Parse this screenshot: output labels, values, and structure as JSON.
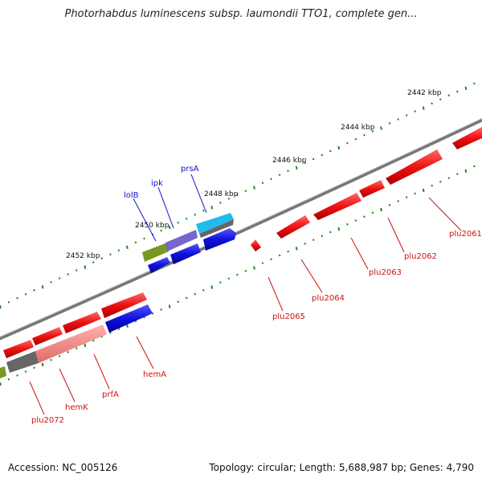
{
  "title": "Photorhabdus luminescens subsp. laumondii TTO1, complete gen...",
  "footer": {
    "accession": "Accession: NC_005126",
    "stats": "Topology: circular; Length: 5,688,987 bp; Genes: 4,790"
  },
  "kbp_ticks": [
    "2442 kbp",
    "2444 kbp",
    "2446 kbp",
    "2448 kbp",
    "2450 kbp",
    "2452 kbp"
  ],
  "colors": {
    "backbone": "#888888",
    "forward_tick": "#228822",
    "red_gene": "#ee1111",
    "blue_gene": "#1111dd",
    "label_blue": "#1111cc",
    "label_red": "#cc1111",
    "olive_gene": "#779922",
    "purple_gene": "#7766cc",
    "cyan_gene": "#22bbee",
    "gray_gene": "#666666",
    "pink_gene": "#f08080"
  },
  "genes": [
    {
      "name": "lolB",
      "color": "olive",
      "track": "forward"
    },
    {
      "name": "ipk",
      "color": "purple",
      "track": "forward"
    },
    {
      "name": "prsA",
      "color": "cyan",
      "track": "forward"
    },
    {
      "name": "plu2061",
      "color": "red",
      "track": "reverse"
    },
    {
      "name": "plu2062",
      "color": "red",
      "track": "reverse"
    },
    {
      "name": "plu2063",
      "color": "red",
      "track": "reverse"
    },
    {
      "name": "plu2064",
      "color": "red",
      "track": "reverse"
    },
    {
      "name": "plu2065",
      "color": "red",
      "track": "reverse"
    },
    {
      "name": "hemA",
      "color": "blue",
      "track": "reverse"
    },
    {
      "name": "prfA",
      "color": "pink",
      "track": "reverse"
    },
    {
      "name": "hemK",
      "color": "gray",
      "track": "reverse"
    },
    {
      "name": "plu2072",
      "color": "red",
      "track": "reverse"
    }
  ]
}
